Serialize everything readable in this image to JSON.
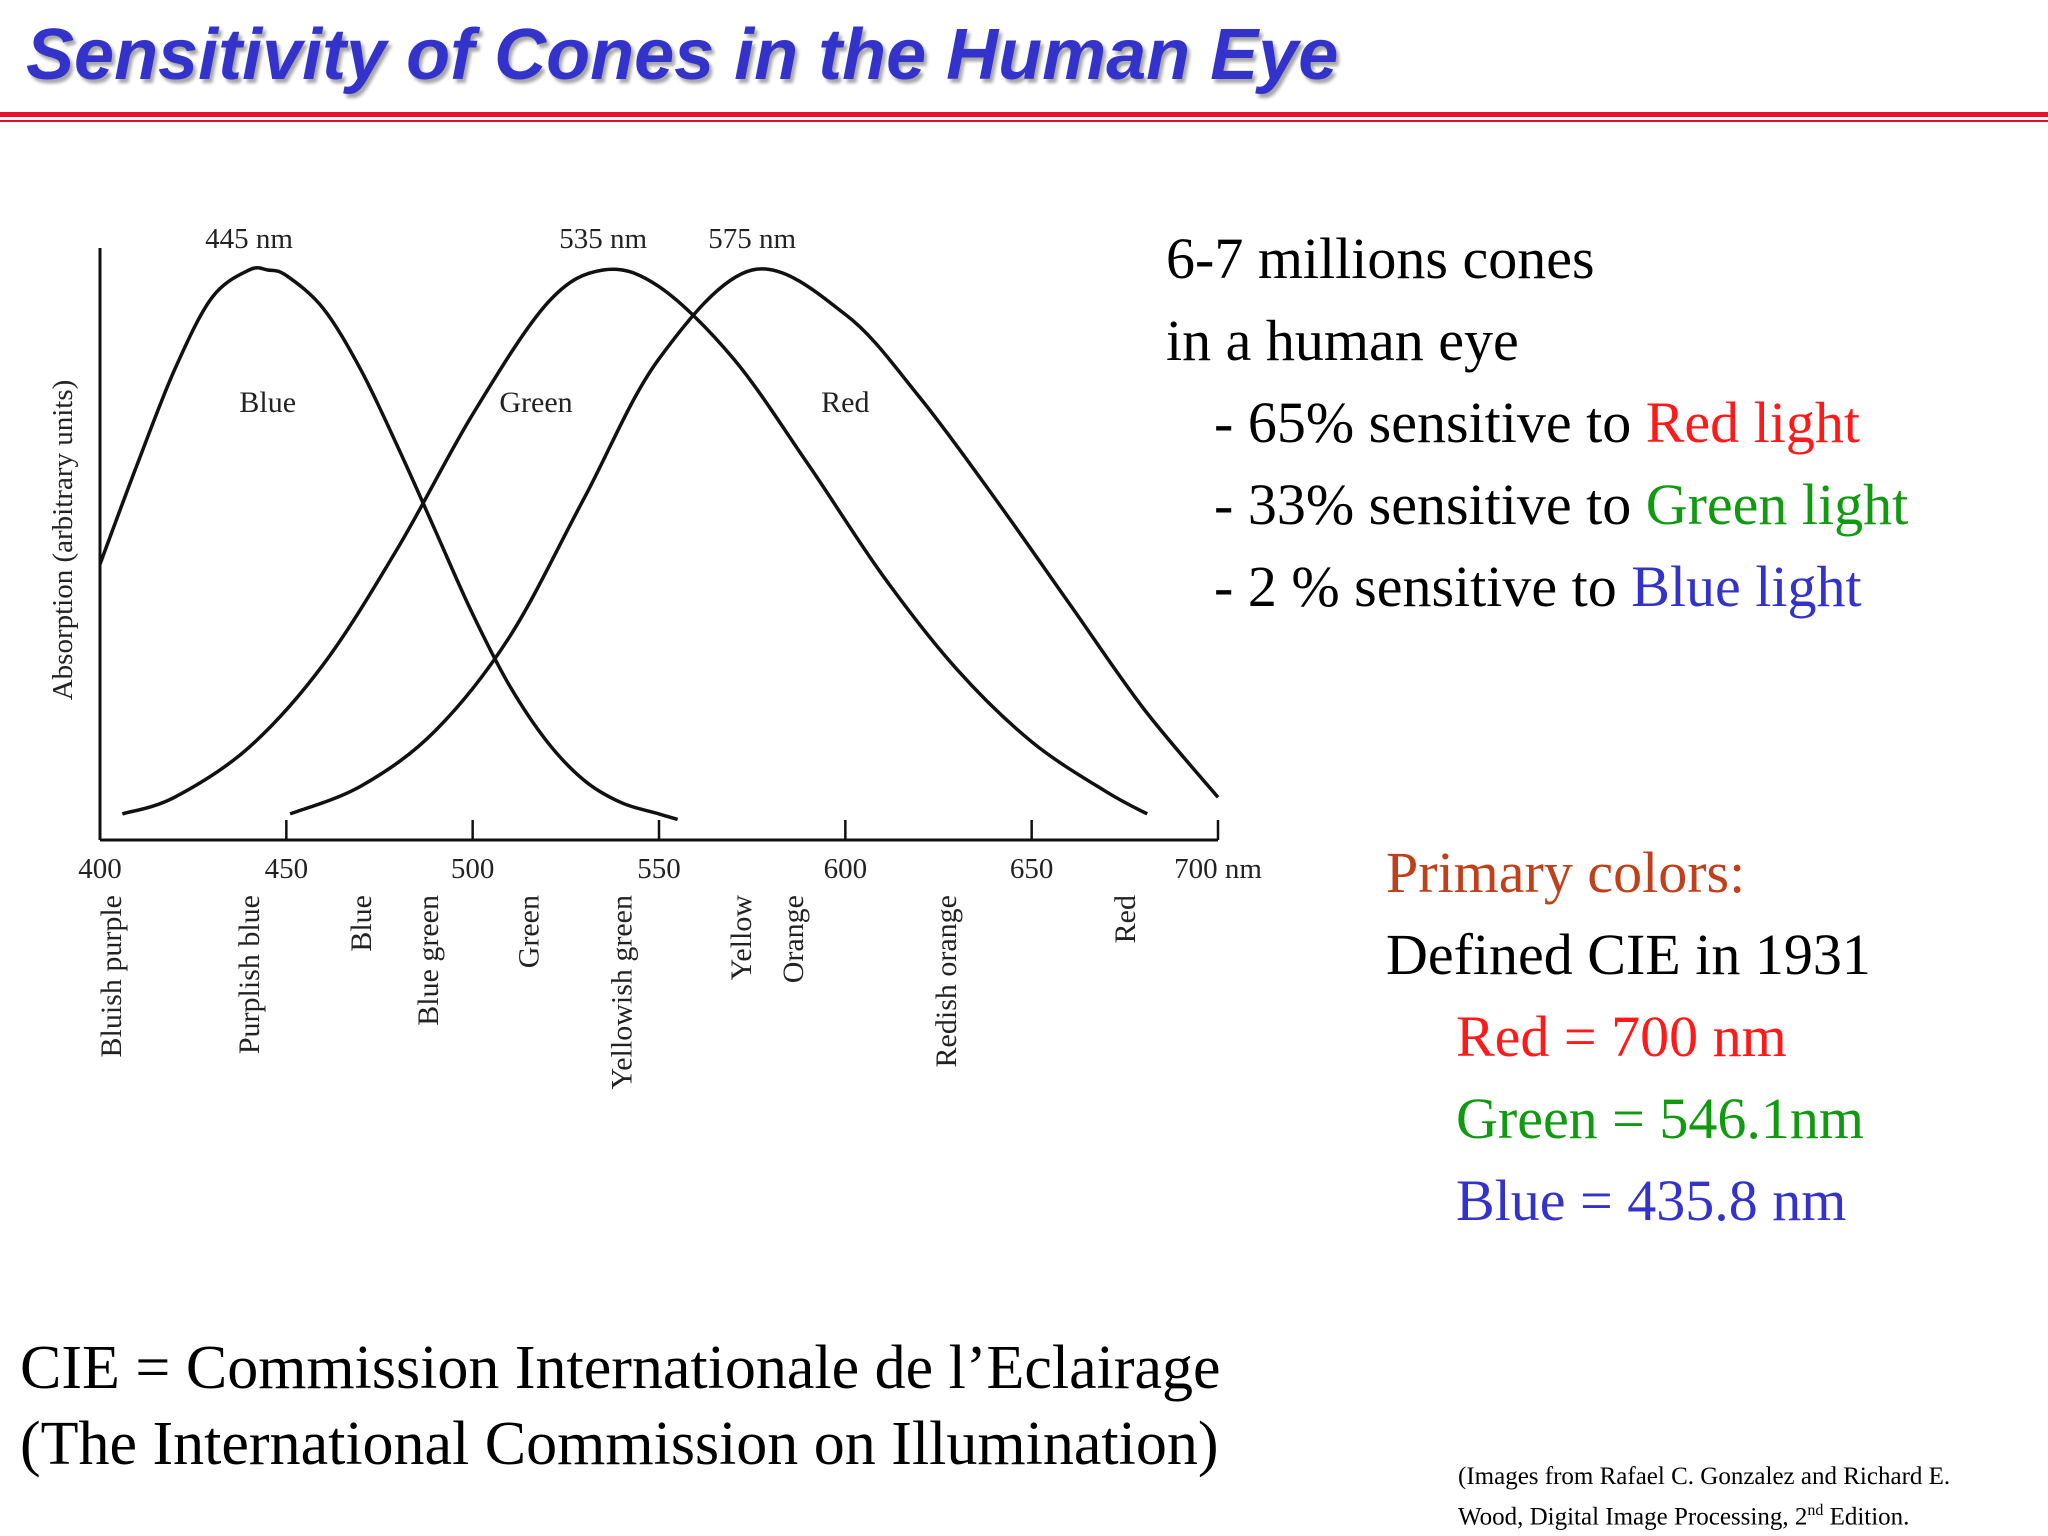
{
  "title": "Sensitivity of Cones in the Human Eye",
  "colors": {
    "title": "#3333cc",
    "rule": "#e8102a",
    "red": "#ff1a1a",
    "green": "#109a10",
    "blue": "#3333cc",
    "primary_heading": "#c0401a"
  },
  "chart_data": {
    "type": "line",
    "ylabel": "Absorption (arbitrary units)",
    "xlabel": "",
    "x_unit": "nm",
    "xlim": [
      400,
      700
    ],
    "ylim": [
      0,
      1
    ],
    "ticks": [
      "400",
      "450",
      "500",
      "550",
      "600",
      "650",
      "700 nm"
    ],
    "peak_labels": [
      "445 nm",
      "535 nm",
      "575 nm"
    ],
    "series": [
      {
        "name": "Blue",
        "x": [
          400,
          410,
          420,
          430,
          440,
          445,
          450,
          460,
          470,
          480,
          490,
          500,
          510,
          520,
          530,
          540,
          550,
          555
        ],
        "values": [
          0.47,
          0.65,
          0.82,
          0.95,
          1.0,
          1.0,
          0.99,
          0.93,
          0.82,
          0.68,
          0.53,
          0.38,
          0.25,
          0.15,
          0.08,
          0.04,
          0.02,
          0.01
        ]
      },
      {
        "name": "Green",
        "x": [
          406,
          420,
          440,
          460,
          480,
          500,
          520,
          535,
          550,
          570,
          590,
          610,
          630,
          650,
          670,
          681
        ],
        "values": [
          0.02,
          0.05,
          0.14,
          0.29,
          0.5,
          0.74,
          0.94,
          1.0,
          0.97,
          0.84,
          0.65,
          0.45,
          0.28,
          0.15,
          0.06,
          0.02
        ]
      },
      {
        "name": "Red",
        "x": [
          451,
          470,
          490,
          510,
          530,
          550,
          575,
          600,
          620,
          640,
          660,
          680,
          700
        ],
        "values": [
          0.02,
          0.07,
          0.17,
          0.34,
          0.59,
          0.84,
          1.0,
          0.92,
          0.77,
          0.59,
          0.4,
          0.21,
          0.05
        ]
      }
    ],
    "color_bands": [
      "Bluish purple",
      "Purplish blue",
      "Blue",
      "Blue green",
      "Green",
      "Yellowish green",
      "Yellow",
      "Orange",
      "Redish orange",
      "Red"
    ],
    "color_band_nm": [
      403,
      440,
      470,
      488,
      515,
      540,
      572,
      586,
      627,
      675
    ]
  },
  "info": {
    "line1": "6-7 millions cones",
    "line2": "in a human eye",
    "items": [
      {
        "prefix": "- 65% sensitive to ",
        "colored": "Red light",
        "color": "red"
      },
      {
        "prefix": "- 33% sensitive to ",
        "colored": "Green light",
        "color": "green"
      },
      {
        "prefix": "- 2 % sensitive to ",
        "colored": "Blue light",
        "color": "blue"
      }
    ]
  },
  "primary": {
    "heading": "Primary colors:",
    "defined": "Defined CIE in 1931",
    "red": "Red = 700 nm",
    "green": "Green = 546.1nm",
    "blue": "Blue = 435.8 nm"
  },
  "cie": {
    "line1": "CIE = Commission Internationale de l’Eclairage",
    "line2": "(The International Commission on Illumination)"
  },
  "citation": {
    "line1": "(Images from Rafael C. Gonzalez and Richard E.",
    "line2_pre": "Wood, Digital Image Processing, 2",
    "line2_sup": "nd",
    "line2_post": " Edition."
  }
}
